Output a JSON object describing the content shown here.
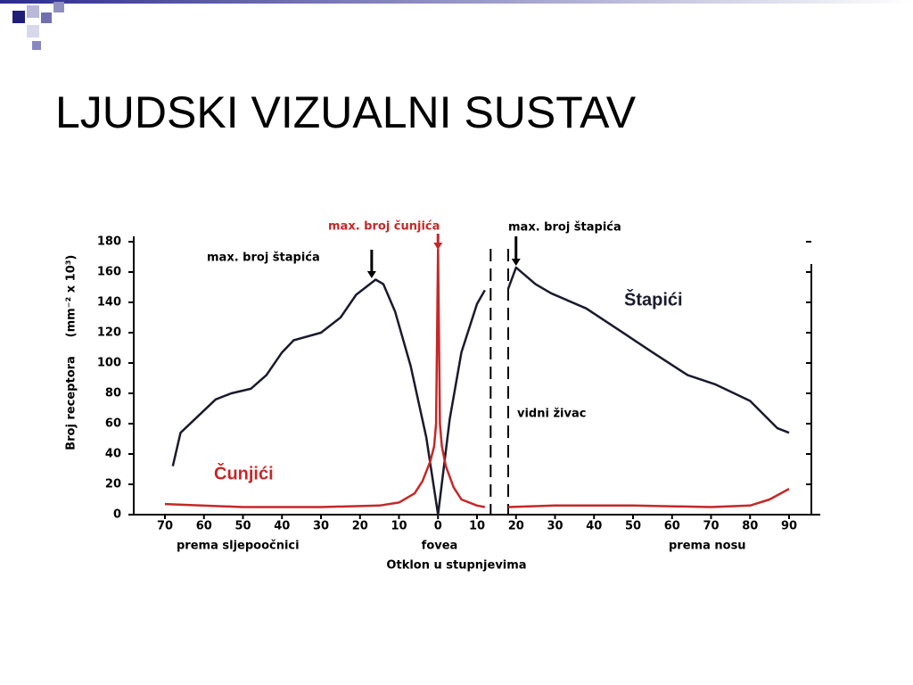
{
  "title": "LJUDSKI VIZUALNI SUSTAV",
  "chart_data": {
    "type": "line",
    "ylabel": "Broj receptora",
    "yunit": "(mm⁻² x 10³)",
    "xlabel": "Otklon u stupnjevima",
    "region_labels": [
      "prema sljepoočnici",
      "fovea",
      "prema nosu"
    ],
    "annotations": [
      {
        "text": "max. broj štapića",
        "x": -17,
        "color": "#000000"
      },
      {
        "text": "max. broj čunjića",
        "x": 0,
        "color": "#c62828"
      },
      {
        "text": "max. broj štapića",
        "x": 20,
        "color": "#000000"
      },
      {
        "text": "vidni živac"
      }
    ],
    "blind_spot": [
      13.5,
      18
    ],
    "xlim": [
      -78,
      98
    ],
    "ylim": [
      0,
      180
    ],
    "xticks": [
      {
        "value": -70,
        "label": "70"
      },
      {
        "value": -60,
        "label": "60"
      },
      {
        "value": -50,
        "label": "50"
      },
      {
        "value": -40,
        "label": "40"
      },
      {
        "value": -30,
        "label": "30"
      },
      {
        "value": -20,
        "label": "20"
      },
      {
        "value": -10,
        "label": "10"
      },
      0,
      10,
      20,
      30,
      40,
      50,
      60,
      70,
      80,
      90
    ],
    "yticks": [
      0,
      20,
      40,
      60,
      80,
      100,
      120,
      140,
      160,
      180
    ],
    "series": [
      {
        "name": "Štapići",
        "color": "#1a1a2e",
        "x": [
          -68,
          -66,
          -57,
          -53,
          -48,
          -44,
          -40,
          -37,
          -30,
          -25,
          -21,
          -16,
          -14,
          -11,
          -7,
          -3,
          0,
          3,
          6,
          10,
          12,
          15,
          18,
          20,
          25,
          29,
          38,
          48,
          55,
          64,
          71,
          80,
          87,
          90
        ],
        "values": [
          32,
          54,
          76,
          80,
          83,
          92,
          107,
          115,
          120,
          130,
          145,
          155,
          152,
          134,
          98,
          51,
          0,
          63,
          107,
          139,
          148,
          null,
          149,
          163,
          152,
          146,
          136,
          119,
          107,
          92,
          86,
          75,
          57,
          54
        ]
      },
      {
        "name": "Čunjići",
        "color": "#c62828",
        "x": [
          -70,
          -50,
          -30,
          -15,
          -10,
          -6,
          -4,
          -2,
          -1,
          -0.5,
          0,
          0.5,
          1,
          2,
          4,
          6,
          10,
          12,
          15,
          18,
          30,
          50,
          70,
          80,
          85,
          90
        ],
        "values": [
          7,
          5,
          5,
          6,
          8,
          14,
          22,
          35,
          45,
          60,
          175,
          60,
          45,
          32,
          18,
          10,
          6,
          5,
          null,
          5,
          6,
          6,
          5,
          6,
          10,
          17
        ]
      }
    ]
  }
}
